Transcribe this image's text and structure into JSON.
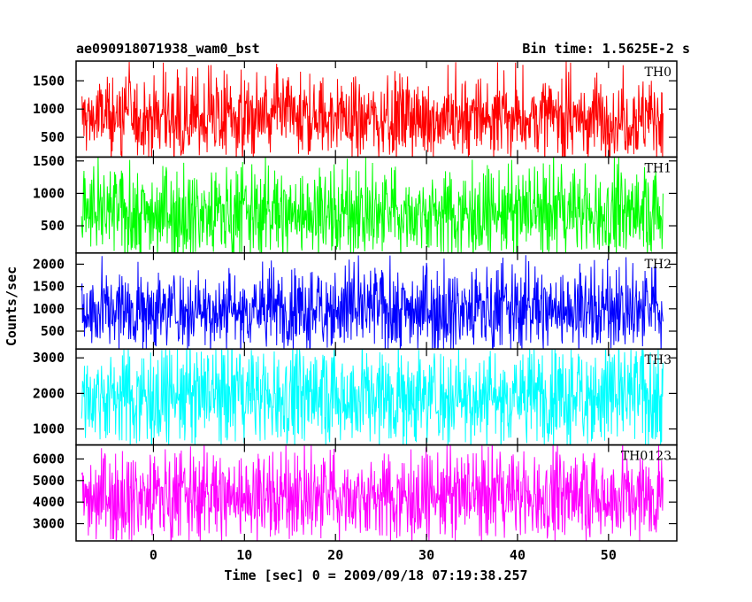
{
  "header": {
    "left_title": "ae090918071938_wam0_bst",
    "right_title": "Bin time: 1.5625E-2 s"
  },
  "ylabel": "Counts/sec",
  "xlabel": "Time [sec] 0 = 2009/09/18 07:19:38.257",
  "chart_data": {
    "type": "line",
    "title": "ae090918071938_wam0_bst",
    "subtitle": "Bin time: 1.5625E-2 s",
    "xlabel": "Time [sec] 0 = 2009/09/18 07:19:38.257",
    "ylabel": "Counts/sec",
    "xlim": [
      -8.5,
      57.5
    ],
    "data_x_range": [
      -7.9,
      56.0
    ],
    "x_ticks": [
      0,
      10,
      20,
      30,
      40,
      50
    ],
    "series": [
      {
        "name": "TH0",
        "color": "#ff0000",
        "ylim": [
          150,
          1850
        ],
        "y_ticks": [
          500,
          1000,
          1500
        ],
        "mean": 850,
        "typical_min": 300,
        "typical_max": 1450,
        "peak_max": 1850,
        "trough_min": 180
      },
      {
        "name": "TH1",
        "color": "#00ff00",
        "ylim": [
          80,
          1560
        ],
        "y_ticks": [
          500,
          1000,
          1500
        ],
        "mean": 700,
        "typical_min": 200,
        "typical_max": 1250,
        "peak_max": 1520,
        "trough_min": 100
      },
      {
        "name": "TH2",
        "color": "#0000ff",
        "ylim": [
          100,
          2250
        ],
        "y_ticks": [
          500,
          1000,
          1500,
          2000
        ],
        "mean": 1000,
        "typical_min": 400,
        "typical_max": 1800,
        "peak_max": 2200,
        "trough_min": 150
      },
      {
        "name": "TH3",
        "color": "#00ffff",
        "ylim": [
          550,
          3250
        ],
        "y_ticks": [
          1000,
          2000,
          3000
        ],
        "mean": 1950,
        "typical_min": 800,
        "typical_max": 3000,
        "peak_max": 3150,
        "trough_min": 600
      },
      {
        "name": "TH0123",
        "color": "#ff00ff",
        "ylim": [
          2200,
          6650
        ],
        "y_ticks": [
          3000,
          4000,
          5000,
          6000
        ],
        "mean": 4300,
        "typical_min": 2800,
        "typical_max": 6000,
        "peak_max": 6450,
        "trough_min": 2300
      }
    ]
  }
}
